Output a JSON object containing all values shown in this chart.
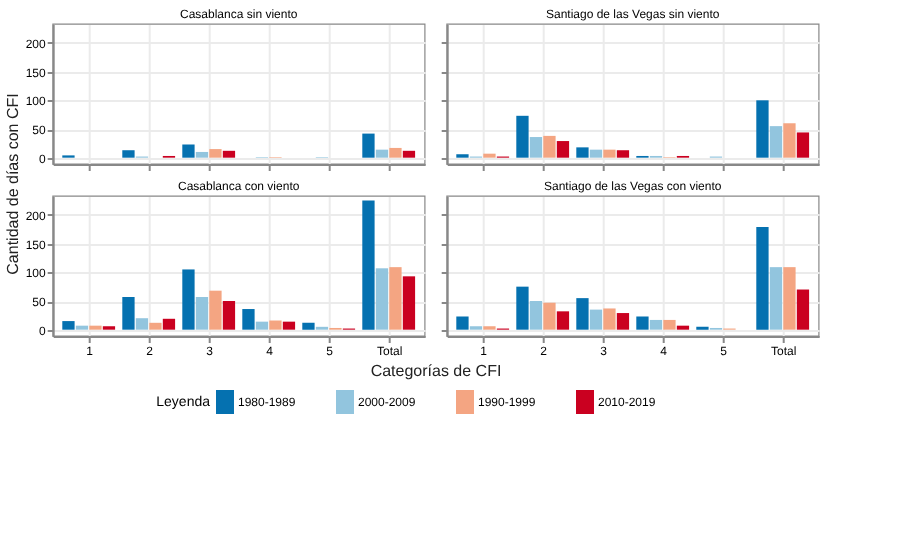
{
  "chart_data": [
    {
      "type": "bar",
      "title": "Casablanca sin viento",
      "ylabel": "Cantidad de días con CFI",
      "legend_title": "Leyenda",
      "legend": "bottom",
      "grid": true,
      "tick_labels": "y",
      "categories": [
        "1",
        "2",
        "3",
        "4",
        "5",
        "Total"
      ],
      "ylim": [
        -11,
        233
      ],
      "yticks": [
        0,
        50,
        100,
        150,
        200
      ],
      "series": [
        {
          "name": "1980-1989",
          "color": "#0571b0",
          "values": [
            4,
            13,
            23,
            0,
            0,
            42
          ]
        },
        {
          "name": "2000-2009",
          "color": "#92c5de",
          "values": [
            0,
            2,
            10,
            1,
            1,
            14
          ]
        },
        {
          "name": "1990-1999",
          "color": "#f4a582",
          "values": [
            0,
            0,
            15,
            1,
            0,
            17
          ]
        },
        {
          "name": "2010-2019",
          "color": "#ca0020",
          "values": [
            0,
            3,
            12,
            0,
            0,
            12
          ]
        }
      ]
    },
    {
      "type": "bar",
      "title": "Santiago de las Vegas sin viento",
      "grid": true,
      "tick_labels": false,
      "categories": [
        "1",
        "2",
        "3",
        "4",
        "5",
        "Total"
      ],
      "ylim": [
        -11,
        233
      ],
      "yticks": [
        0,
        50,
        100,
        150,
        200
      ],
      "series": [
        {
          "name": "1980-1989",
          "color": "#0571b0",
          "values": [
            6,
            73,
            18,
            3,
            0,
            100
          ]
        },
        {
          "name": "2000-2009",
          "color": "#92c5de",
          "values": [
            2,
            36,
            14,
            3,
            2,
            55
          ]
        },
        {
          "name": "1990-1999",
          "color": "#f4a582",
          "values": [
            7,
            38,
            14,
            1,
            0,
            60
          ]
        },
        {
          "name": "2010-2019",
          "color": "#ca0020",
          "values": [
            2,
            29,
            13,
            3,
            0,
            44
          ]
        }
      ]
    },
    {
      "type": "bar",
      "title": "Casablanca con viento",
      "xlabel": "Categorías de CFI",
      "grid": true,
      "categories": [
        "1",
        "2",
        "3",
        "4",
        "5",
        "Total"
      ],
      "ylim": [
        -11,
        233
      ],
      "yticks": [
        0,
        50,
        100,
        150,
        200
      ],
      "series": [
        {
          "name": "1980-1989",
          "color": "#0571b0",
          "values": [
            15,
            57,
            105,
            36,
            12,
            225
          ]
        },
        {
          "name": "2000-2009",
          "color": "#92c5de",
          "values": [
            7,
            20,
            57,
            14,
            5,
            107
          ]
        },
        {
          "name": "1990-1999",
          "color": "#f4a582",
          "values": [
            7,
            12,
            68,
            16,
            3,
            109
          ]
        },
        {
          "name": "2010-2019",
          "color": "#ca0020",
          "values": [
            6,
            19,
            50,
            14,
            2,
            93
          ]
        }
      ]
    },
    {
      "type": "bar",
      "title": "Santiago de las Vegas con viento",
      "grid": true,
      "tick_labels": "x",
      "categories": [
        "1",
        "2",
        "3",
        "4",
        "5",
        "Total"
      ],
      "ylim": [
        -11,
        233
      ],
      "yticks": [
        0,
        50,
        100,
        150,
        200
      ],
      "series": [
        {
          "name": "1980-1989",
          "color": "#0571b0",
          "values": [
            23,
            75,
            55,
            23,
            5,
            179
          ]
        },
        {
          "name": "2000-2009",
          "color": "#92c5de",
          "values": [
            6,
            50,
            35,
            17,
            3,
            109
          ]
        },
        {
          "name": "1990-1999",
          "color": "#f4a582",
          "values": [
            6,
            47,
            37,
            17,
            2,
            109
          ]
        },
        {
          "name": "2010-2019",
          "color": "#ca0020",
          "values": [
            2,
            32,
            29,
            7,
            0,
            70
          ]
        }
      ]
    }
  ]
}
